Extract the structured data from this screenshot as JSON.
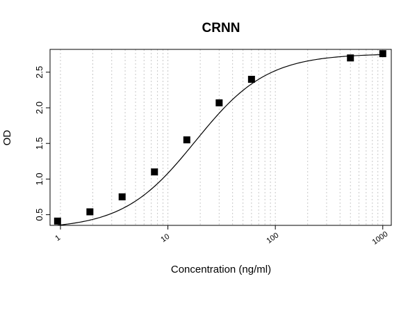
{
  "chart_data": {
    "type": "scatter",
    "title": "CRNN",
    "xlabel": "Concentration (ng/ml)",
    "ylabel": "OD",
    "x_scale": "log",
    "xlim": [
      0.8,
      1200
    ],
    "ylim": [
      0.35,
      2.82
    ],
    "x_ticks": [
      1,
      10,
      100,
      1000
    ],
    "x_tick_labels": [
      "1",
      "10",
      "100",
      "1000"
    ],
    "y_ticks": [
      0.5,
      1.0,
      1.5,
      2.0,
      2.5
    ],
    "y_tick_labels": [
      "0.5",
      "1.0",
      "1.5",
      "2.0",
      "2.5"
    ],
    "grid": "vertical dotted at log minor ticks",
    "marker": "filled square",
    "points": {
      "x": [
        0.94,
        1.88,
        3.75,
        7.5,
        15,
        30,
        60,
        500,
        1000
      ],
      "y": [
        0.41,
        0.54,
        0.75,
        1.1,
        1.55,
        2.07,
        2.4,
        2.7,
        2.76
      ]
    },
    "fit_curve": {
      "type": "4PL",
      "bottom": 0.3,
      "top": 2.76,
      "ec50": 18,
      "hill": 1.3
    }
  }
}
